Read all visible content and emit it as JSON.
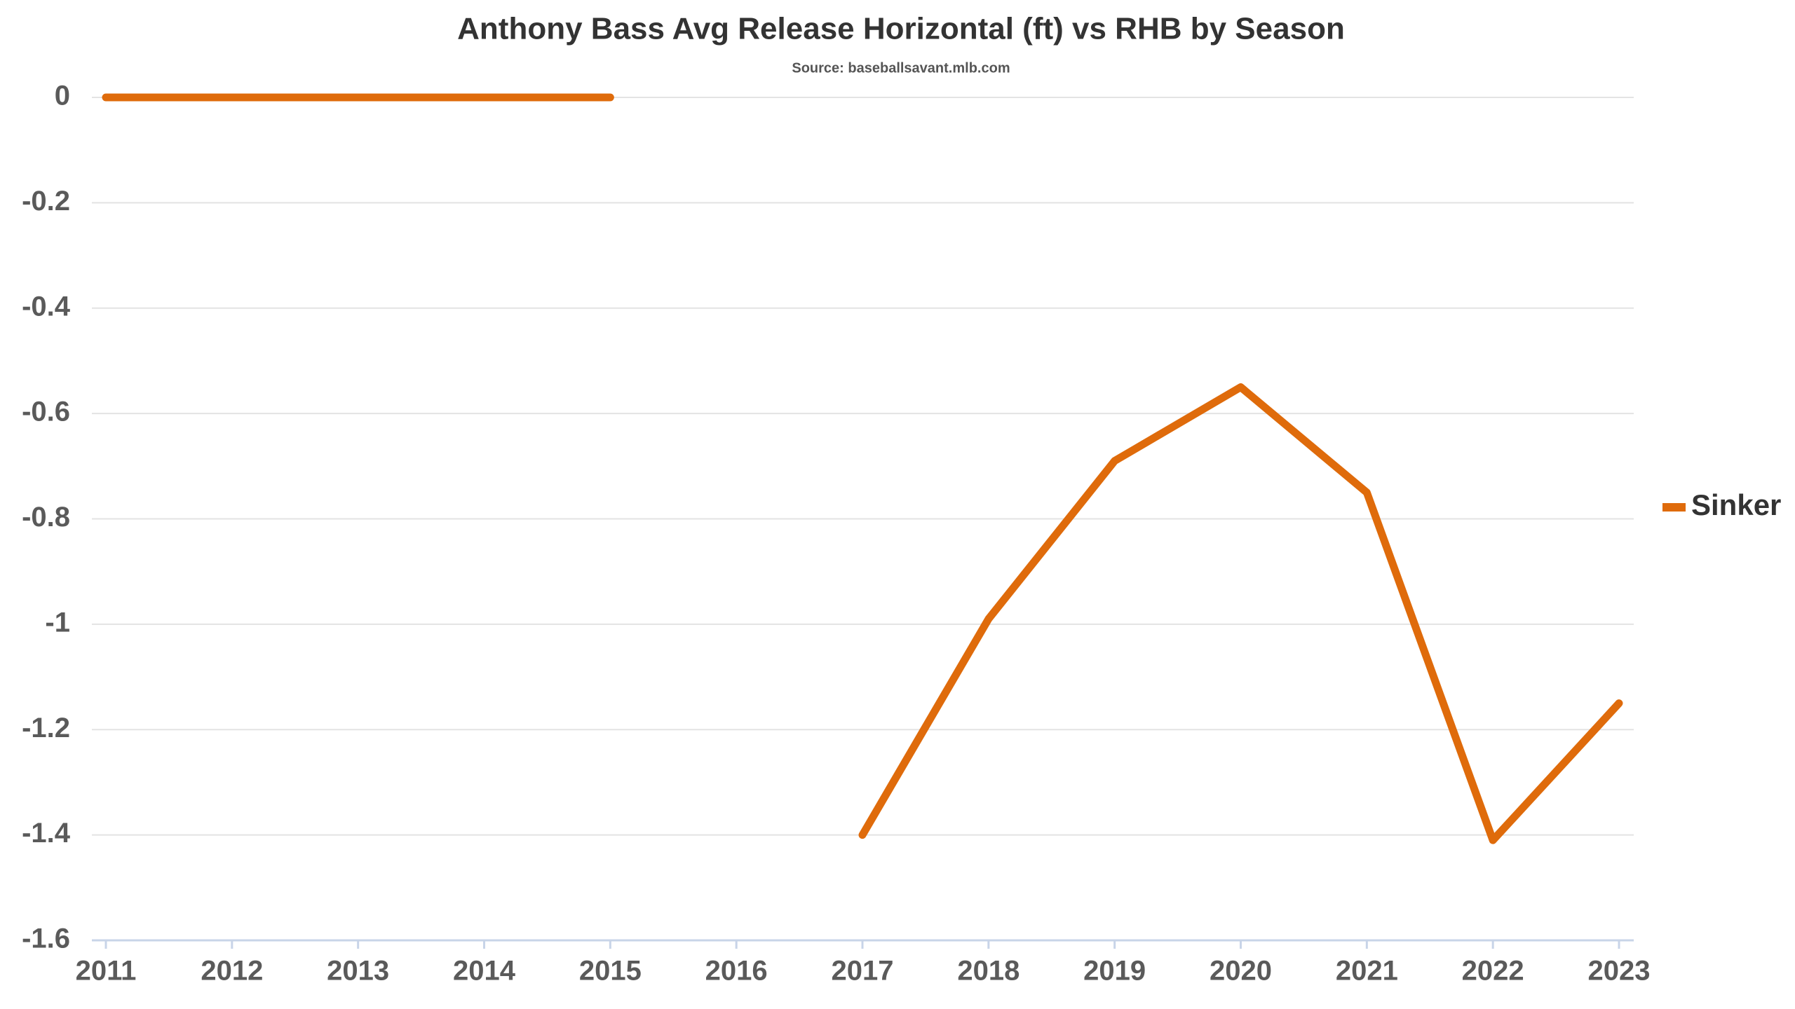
{
  "chart_data": {
    "type": "line",
    "title": "Anthony Bass Avg Release Horizontal (ft) vs RHB by Season",
    "subtitle": "Source: baseballsavant.mlb.com",
    "categories": [
      "2011",
      "2012",
      "2013",
      "2014",
      "2015",
      "2016",
      "2017",
      "2018",
      "2019",
      "2020",
      "2021",
      "2022",
      "2023"
    ],
    "series": [
      {
        "name": "Sinker",
        "color": "#df6b0b",
        "values": [
          0,
          0,
          0,
          0,
          0,
          null,
          -1.4,
          -0.99,
          -0.69,
          -0.55,
          -0.75,
          -1.41,
          -1.15
        ]
      }
    ],
    "ylim": [
      -1.6,
      0
    ],
    "yticks": [
      0,
      -0.2,
      -0.4,
      -0.6,
      -0.8,
      -1,
      -1.2,
      -1.4,
      -1.6
    ],
    "grid": true,
    "legend": "right"
  }
}
